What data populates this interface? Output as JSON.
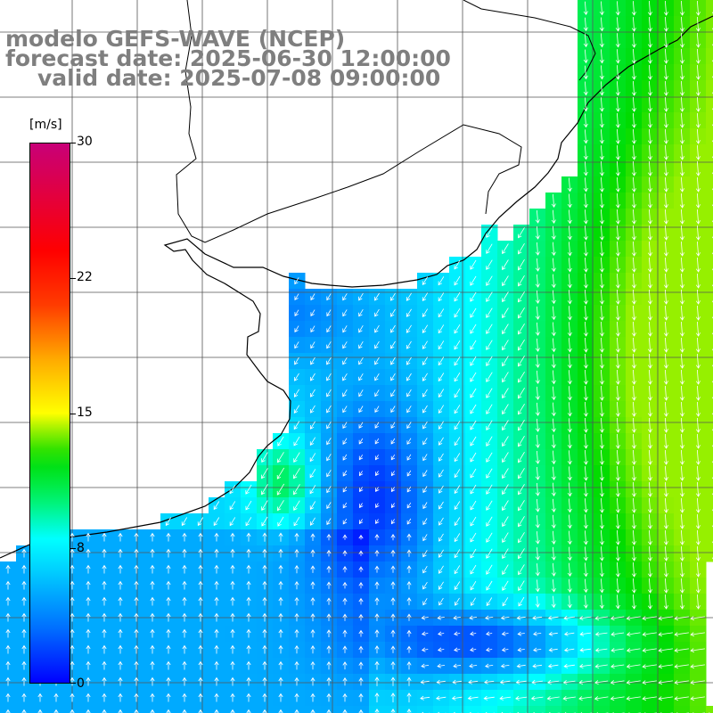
{
  "titles": {
    "model": "modelo GEFS-WAVE (NCEP)",
    "forecast": "forecast date: 2025-06-30 12:00:00",
    "valid": "valid date: 2025-07-08 09:00:00"
  },
  "colorbar": {
    "unit": "[m/s]",
    "ticks": [
      "30",
      "22",
      "15",
      "8",
      "0"
    ],
    "min": 0,
    "max": 30
  },
  "colors": {
    "title_gray": "#7f7f7f",
    "land": "#ffffff",
    "grid": "#555555",
    "coast": "#000000",
    "arrow": "#ffffff"
  },
  "icons": [
    "wind-vector-arrow-icon"
  ]
}
